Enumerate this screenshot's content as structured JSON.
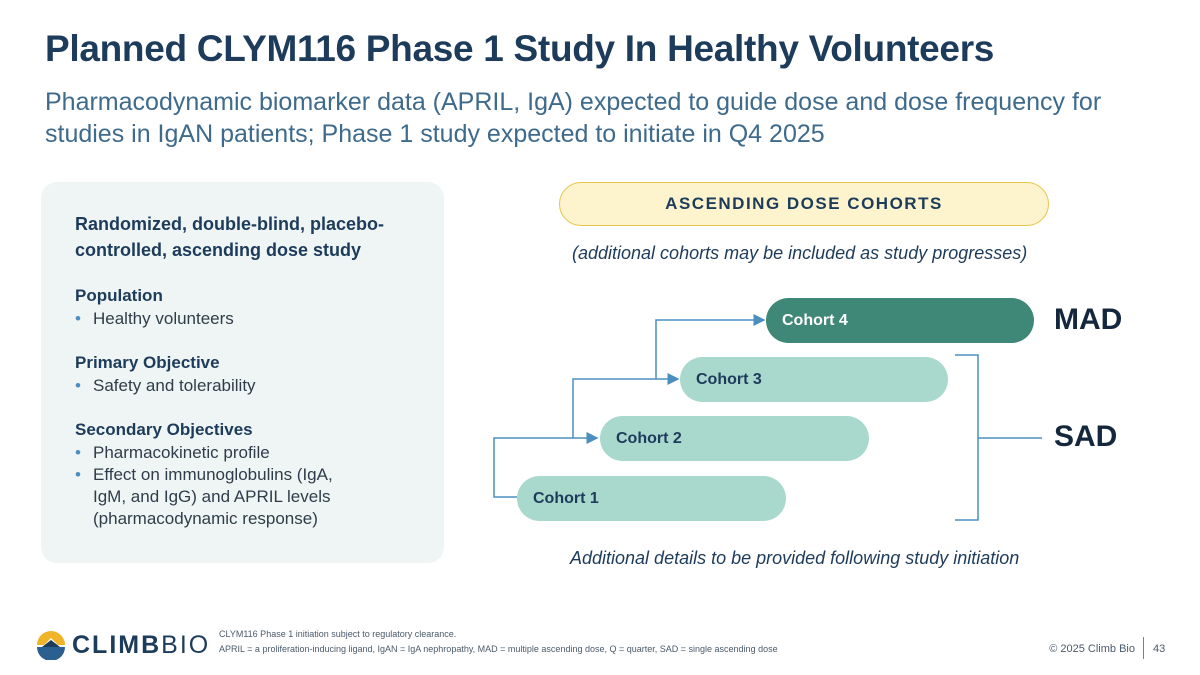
{
  "title": "Planned CLYM116 Phase 1 Study In Healthy Volunteers",
  "subtitle": "Pharmacodynamic biomarker data (APRIL, IgA) expected to guide dose and dose frequency for studies in IgAN patients; Phase 1 study expected to initiate in Q4 2025",
  "design_panel": {
    "heading": "Randomized, double-blind, placebo-controlled, ascending dose study",
    "population_label": "Population",
    "population_items": [
      "Healthy volunteers"
    ],
    "primary_label": "Primary Objective",
    "primary_items": [
      "Safety and tolerability"
    ],
    "secondary_label": "Secondary Objectives",
    "secondary_items": [
      "Pharmacokinetic profile",
      "Effect on immunoglobulins (IgA, IgM, and IgG) and APRIL levels (pharmacodynamic response)"
    ]
  },
  "cohorts_section": {
    "banner": "ASCENDING DOSE COHORTS",
    "note": "(additional cohorts may be included as study progresses)",
    "cohorts": [
      "Cohort 1",
      "Cohort 2",
      "Cohort 3",
      "Cohort 4"
    ],
    "mad_label": "MAD",
    "sad_label": "SAD",
    "footer_note": "Additional details to be provided following study initiation",
    "colors": {
      "sad": "#a9d8cd",
      "mad": "#3f8878",
      "connector": "#4a8fc0"
    }
  },
  "footer": {
    "logo_bold": "CLIMB",
    "logo_light": "BIO",
    "footnote_1": "CLYM116 Phase 1 initiation subject to regulatory clearance.",
    "footnote_2": "APRIL = a proliferation-inducing ligand, IgAN = IgA nephropathy, MAD = multiple ascending dose, Q = quarter, SAD = single ascending dose",
    "copyright": "© 2025 Climb Bio",
    "page_number": "43"
  }
}
